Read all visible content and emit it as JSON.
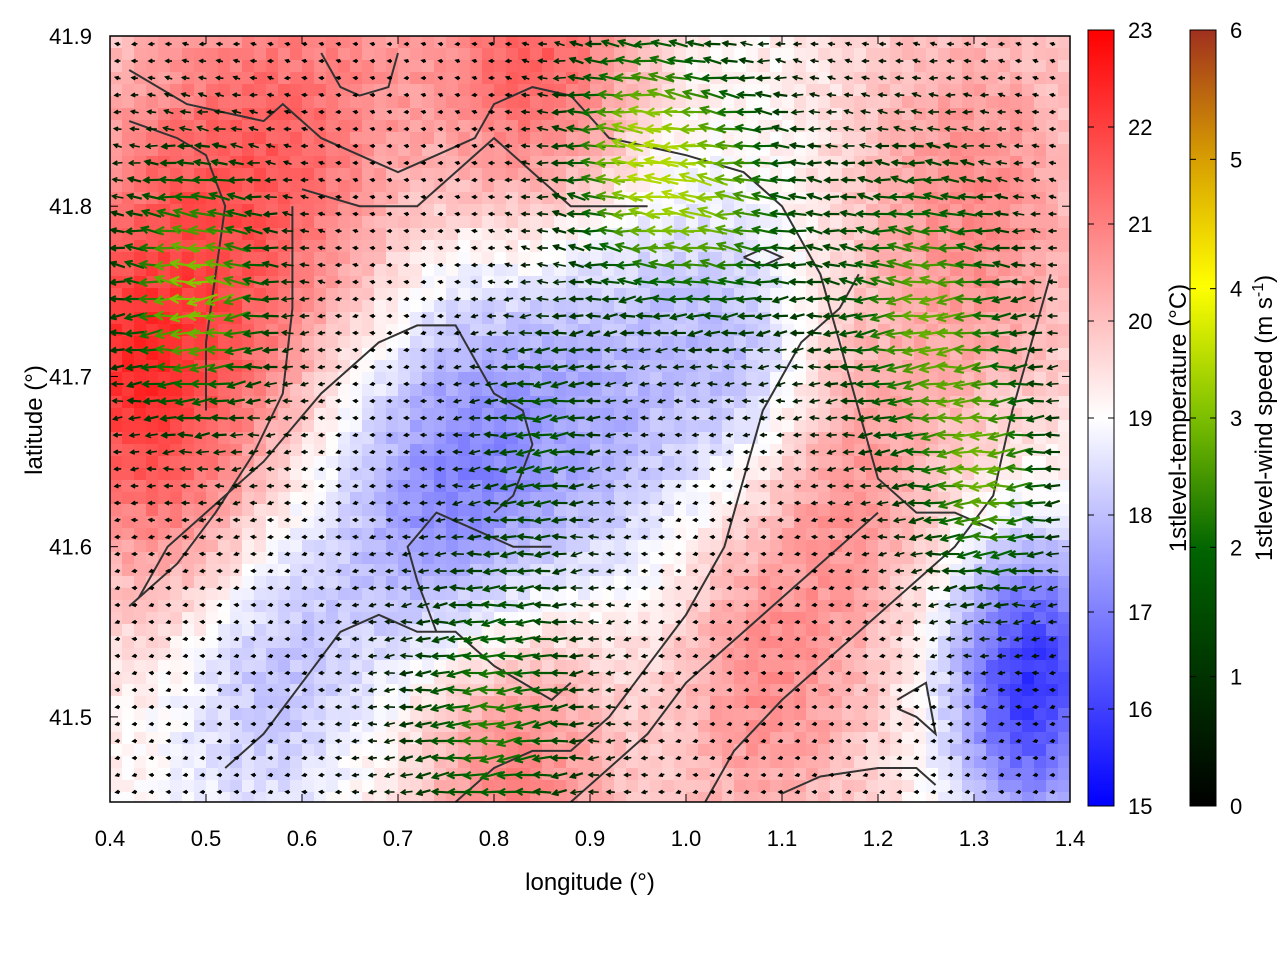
{
  "chart_data": {
    "type": "heatmap",
    "title": "",
    "xlabel": "longitude (°)",
    "ylabel": "latitude (°)",
    "xlim": [
      0.4,
      1.4
    ],
    "ylim": [
      41.45,
      41.9
    ],
    "x_ticks": [
      0.4,
      0.5,
      0.6,
      0.7,
      0.8,
      0.9,
      1.0,
      1.1,
      1.2,
      1.3,
      1.4
    ],
    "x_tick_labels": [
      "0.4",
      "0.5",
      "0.6",
      "0.7",
      "0.8",
      "0.9",
      "1.0",
      "1.1",
      "1.2",
      "1.3",
      "1.4"
    ],
    "y_ticks": [
      41.5,
      41.6,
      41.7,
      41.8,
      41.9
    ],
    "y_tick_labels": [
      "41.5",
      "41.6",
      "41.7",
      "41.8",
      "41.9"
    ],
    "colorbars": [
      {
        "label": "1stlevel-temperature (°C)",
        "range": [
          15,
          23
        ],
        "ticks": [
          "15",
          "16",
          "17",
          "18",
          "19",
          "20",
          "21",
          "22",
          "23"
        ],
        "colors": [
          "#0000ff",
          "#ffffff",
          "#ff0000"
        ]
      },
      {
        "label_main": "1stlevel-wind speed (m s",
        "label_sup": "-1",
        "label_end": ")",
        "range": [
          0,
          6
        ],
        "ticks": [
          "0",
          "1",
          "2",
          "3",
          "4",
          "5",
          "6"
        ],
        "colors": [
          "#000000",
          "#006400",
          "#7cbf00",
          "#ffff00",
          "#d8a000",
          "#a0301e"
        ]
      }
    ],
    "temperature_field": {
      "base": 19.3,
      "anomalies": [
        {
          "lon": 0.48,
          "lat": 41.76,
          "sigma": 0.1,
          "dT": 2.2
        },
        {
          "lon": 0.85,
          "lat": 41.88,
          "sigma": 0.08,
          "dT": 2.6
        },
        {
          "lon": 0.62,
          "lat": 41.86,
          "sigma": 0.09,
          "dT": 1.4
        },
        {
          "lon": 1.3,
          "lat": 41.8,
          "sigma": 0.09,
          "dT": 1.5
        },
        {
          "lon": 1.18,
          "lat": 41.64,
          "sigma": 0.06,
          "dT": 1.0
        },
        {
          "lon": 1.08,
          "lat": 41.53,
          "sigma": 0.08,
          "dT": 1.6
        },
        {
          "lon": 0.82,
          "lat": 41.48,
          "sigma": 0.08,
          "dT": 2.0
        },
        {
          "lon": 0.48,
          "lat": 41.62,
          "sigma": 0.07,
          "dT": 1.3
        },
        {
          "lon": 0.9,
          "lat": 41.7,
          "sigma": 0.12,
          "dT": -1.6
        },
        {
          "lon": 0.75,
          "lat": 41.62,
          "sigma": 0.08,
          "dT": -1.8
        },
        {
          "lon": 0.55,
          "lat": 41.54,
          "sigma": 0.08,
          "dT": -1.5
        },
        {
          "lon": 1.36,
          "lat": 41.52,
          "sigma": 0.06,
          "dT": -3.5
        },
        {
          "lon": 1.06,
          "lat": 41.71,
          "sigma": 0.05,
          "dT": -0.8
        },
        {
          "lon": 0.4,
          "lat": 41.7,
          "sigma": 0.05,
          "dT": 1.2
        }
      ]
    },
    "wind_field": {
      "direction": "easterly (toward west)",
      "strong_zones": [
        {
          "lon": 0.49,
          "lat": 41.75,
          "sigma": 0.06,
          "speed": 3.0
        },
        {
          "lon": 0.95,
          "lat": 41.83,
          "sigma": 0.06,
          "speed": 2.8
        },
        {
          "lon": 1.25,
          "lat": 41.74,
          "sigma": 0.07,
          "speed": 2.6
        },
        {
          "lon": 1.32,
          "lat": 41.63,
          "sigma": 0.05,
          "speed": 2.2
        },
        {
          "lon": 0.8,
          "lat": 41.5,
          "sigma": 0.07,
          "speed": 2.2
        },
        {
          "lon": 1.05,
          "lat": 41.8,
          "sigma": 0.06,
          "speed": 2.0
        },
        {
          "lon": 0.85,
          "lat": 41.67,
          "sigma": 0.05,
          "speed": 1.5
        }
      ]
    },
    "contours": [
      [
        [
          0.42,
          41.88
        ],
        [
          0.48,
          41.86
        ],
        [
          0.52,
          41.855
        ],
        [
          0.56,
          41.85
        ],
        [
          0.58,
          41.86
        ],
        [
          0.62,
          41.84
        ],
        [
          0.66,
          41.83
        ],
        [
          0.7,
          41.82
        ],
        [
          0.74,
          41.83
        ],
        [
          0.78,
          41.84
        ],
        [
          0.8,
          41.86
        ],
        [
          0.84,
          41.87
        ],
        [
          0.88,
          41.865
        ],
        [
          0.92,
          41.84
        ],
        [
          0.96,
          41.835
        ],
        [
          1.0,
          41.83
        ],
        [
          1.06,
          41.82
        ],
        [
          1.1,
          41.8
        ],
        [
          1.14,
          41.76
        ],
        [
          1.16,
          41.72
        ],
        [
          1.18,
          41.68
        ],
        [
          1.2,
          41.64
        ],
        [
          1.24,
          41.62
        ],
        [
          1.28,
          41.62
        ],
        [
          1.32,
          41.61
        ]
      ],
      [
        [
          0.42,
          41.85
        ],
        [
          0.47,
          41.84
        ],
        [
          0.5,
          41.83
        ],
        [
          0.52,
          41.8
        ],
        [
          0.51,
          41.76
        ],
        [
          0.5,
          41.72
        ],
        [
          0.5,
          41.68
        ]
      ],
      [
        [
          0.62,
          41.89
        ],
        [
          0.64,
          41.87
        ],
        [
          0.66,
          41.865
        ],
        [
          0.69,
          41.87
        ],
        [
          0.7,
          41.89
        ]
      ],
      [
        [
          0.6,
          41.81
        ],
        [
          0.66,
          41.8
        ],
        [
          0.72,
          41.8
        ],
        [
          0.76,
          41.82
        ],
        [
          0.8,
          41.84
        ],
        [
          0.84,
          41.82
        ],
        [
          0.88,
          41.8
        ],
        [
          0.92,
          41.8
        ],
        [
          0.96,
          41.8
        ]
      ],
      [
        [
          0.43,
          41.57
        ],
        [
          0.46,
          41.6
        ],
        [
          0.5,
          41.62
        ],
        [
          0.56,
          41.65
        ],
        [
          0.62,
          41.69
        ],
        [
          0.68,
          41.72
        ],
        [
          0.72,
          41.73
        ],
        [
          0.76,
          41.73
        ],
        [
          0.78,
          41.71
        ],
        [
          0.8,
          41.69
        ],
        [
          0.83,
          41.68
        ],
        [
          0.84,
          41.66
        ],
        [
          0.82,
          41.63
        ],
        [
          0.8,
          41.62
        ]
      ],
      [
        [
          0.42,
          41.565
        ],
        [
          0.47,
          41.59
        ],
        [
          0.51,
          41.62
        ],
        [
          0.55,
          41.655
        ],
        [
          0.58,
          41.69
        ],
        [
          0.59,
          41.74
        ],
        [
          0.59,
          41.8
        ]
      ],
      [
        [
          0.74,
          41.55
        ],
        [
          0.72,
          41.58
        ],
        [
          0.71,
          41.6
        ],
        [
          0.74,
          41.62
        ],
        [
          0.78,
          41.61
        ],
        [
          0.82,
          41.6
        ],
        [
          0.86,
          41.6
        ]
      ],
      [
        [
          0.52,
          41.47
        ],
        [
          0.56,
          41.49
        ],
        [
          0.6,
          41.52
        ],
        [
          0.64,
          41.55
        ],
        [
          0.68,
          41.56
        ],
        [
          0.72,
          41.55
        ],
        [
          0.76,
          41.55
        ],
        [
          0.8,
          41.53
        ],
        [
          0.86,
          41.51
        ],
        [
          0.88,
          41.52
        ]
      ],
      [
        [
          0.76,
          41.45
        ],
        [
          0.8,
          41.47
        ],
        [
          0.84,
          41.48
        ],
        [
          0.88,
          41.48
        ],
        [
          0.92,
          41.5
        ],
        [
          0.96,
          41.53
        ],
        [
          1.0,
          41.56
        ],
        [
          1.04,
          41.6
        ],
        [
          1.06,
          41.64
        ],
        [
          1.08,
          41.68
        ],
        [
          1.12,
          41.72
        ],
        [
          1.16,
          41.74
        ],
        [
          1.18,
          41.76
        ]
      ],
      [
        [
          0.88,
          41.45
        ],
        [
          0.92,
          41.47
        ],
        [
          0.96,
          41.49
        ],
        [
          1.0,
          41.52
        ],
        [
          1.04,
          41.54
        ],
        [
          1.08,
          41.56
        ],
        [
          1.12,
          41.58
        ],
        [
          1.16,
          41.6
        ],
        [
          1.2,
          41.62
        ]
      ],
      [
        [
          1.02,
          41.45
        ],
        [
          1.05,
          41.48
        ],
        [
          1.1,
          41.51
        ],
        [
          1.16,
          41.54
        ],
        [
          1.22,
          41.57
        ],
        [
          1.28,
          41.6
        ],
        [
          1.32,
          41.63
        ],
        [
          1.34,
          41.68
        ],
        [
          1.36,
          41.72
        ],
        [
          1.38,
          41.76
        ]
      ],
      [
        [
          1.1,
          41.455
        ],
        [
          1.14,
          41.465
        ],
        [
          1.2,
          41.47
        ],
        [
          1.24,
          41.47
        ],
        [
          1.26,
          41.46
        ]
      ],
      [
        [
          1.22,
          41.505
        ],
        [
          1.24,
          41.5
        ],
        [
          1.26,
          41.49
        ],
        [
          1.25,
          41.52
        ],
        [
          1.22,
          41.51
        ]
      ],
      [
        [
          1.06,
          41.77
        ],
        [
          1.08,
          41.765
        ],
        [
          1.1,
          41.77
        ],
        [
          1.08,
          41.775
        ],
        [
          1.06,
          41.77
        ]
      ]
    ]
  }
}
